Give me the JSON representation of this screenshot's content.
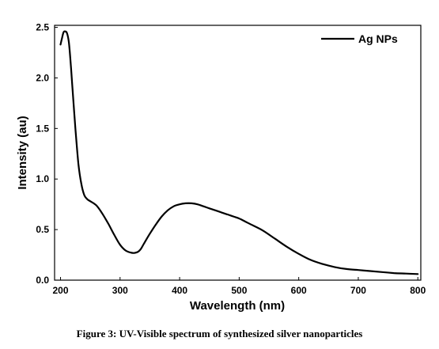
{
  "chart_data": {
    "type": "line",
    "title": "",
    "xlabel": "Wavelength (nm)",
    "ylabel": "Intensity (au)",
    "xlim": [
      190,
      805
    ],
    "ylim": [
      0,
      2.52
    ],
    "xticks": [
      200,
      300,
      400,
      500,
      600,
      700,
      800
    ],
    "xtick_labels": [
      "200",
      "300",
      "400",
      "500",
      "600",
      "700",
      "800"
    ],
    "yticks": [
      0.0,
      0.5,
      1.0,
      1.5,
      2.0,
      2.5
    ],
    "ytick_labels": [
      "0.0",
      "0.5",
      "1.0",
      "1.5",
      "2.0",
      "2.5"
    ],
    "grid": false,
    "legend_position": "top-right",
    "series": [
      {
        "name": "Ag NPs",
        "color": "#000000",
        "x": [
          200,
          202,
          205,
          208,
          211,
          214,
          217,
          220,
          225,
          230,
          235,
          240,
          245,
          250,
          260,
          270,
          280,
          290,
          300,
          310,
          320,
          325,
          330,
          335,
          340,
          350,
          360,
          370,
          380,
          390,
          400,
          410,
          420,
          430,
          440,
          450,
          460,
          470,
          480,
          490,
          500,
          510,
          520,
          540,
          560,
          580,
          600,
          620,
          640,
          660,
          680,
          700,
          720,
          740,
          760,
          780,
          800
        ],
        "y": [
          2.33,
          2.38,
          2.45,
          2.46,
          2.44,
          2.35,
          2.15,
          1.9,
          1.5,
          1.15,
          0.95,
          0.84,
          0.8,
          0.78,
          0.74,
          0.66,
          0.56,
          0.45,
          0.35,
          0.29,
          0.27,
          0.27,
          0.28,
          0.31,
          0.36,
          0.46,
          0.55,
          0.63,
          0.69,
          0.73,
          0.75,
          0.76,
          0.76,
          0.75,
          0.73,
          0.71,
          0.69,
          0.67,
          0.65,
          0.63,
          0.61,
          0.58,
          0.55,
          0.49,
          0.41,
          0.33,
          0.26,
          0.2,
          0.16,
          0.13,
          0.11,
          0.1,
          0.09,
          0.08,
          0.07,
          0.065,
          0.06
        ]
      }
    ]
  },
  "figure": {
    "caption": "Figure 3: UV-Visible spectrum of synthesized silver nanoparticles"
  }
}
